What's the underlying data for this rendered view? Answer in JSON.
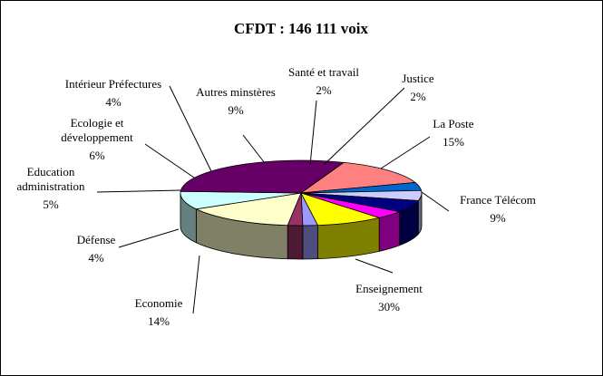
{
  "chart_data": {
    "type": "pie",
    "title": "CFDT : 146 111 voix",
    "three_d": true,
    "categories": [
      "Santé et travail",
      "Justice",
      "La Poste",
      "France Télécom",
      "Enseignement",
      "Economie",
      "Défense",
      "Education administration",
      "Ecologie et développement",
      "Intérieur Préfectures",
      "Autres minstères"
    ],
    "values": [
      2,
      2,
      15,
      9,
      30,
      14,
      4,
      5,
      6,
      4,
      9
    ],
    "value_labels": [
      "2%",
      "2%",
      "15%",
      "9%",
      "30%",
      "14%",
      "4%",
      "5%",
      "6%",
      "4%",
      "9%"
    ],
    "colors": [
      "#9999ff",
      "#993366",
      "#ffffcc",
      "#ccffff",
      "#660066",
      "#ff8080",
      "#0066cc",
      "#ccccff",
      "#000080",
      "#ff00ff",
      "#ffff00"
    ],
    "label_lines": [
      [
        "Santé et travail"
      ],
      [
        "Justice"
      ],
      [
        "La Poste"
      ],
      [
        "France Télécom"
      ],
      [
        "Enseignement"
      ],
      [
        "Economie"
      ],
      [
        "Défense"
      ],
      [
        "Education",
        "administration"
      ],
      [
        "Ecologie et",
        "développement"
      ],
      [
        "Intérieur Préfectures"
      ],
      [
        "Autres minstères"
      ]
    ]
  }
}
